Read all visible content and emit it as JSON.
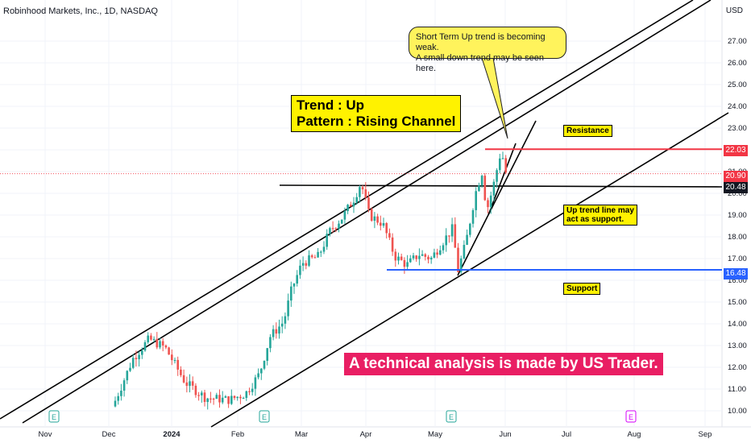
{
  "header": {
    "symbol_title": "Robinhood Markets, Inc., 1D, NASDAQ",
    "currency": "USD"
  },
  "annotations": {
    "trend_line1": "Trend : Up",
    "trend_line2": "Pattern : Rising Channel",
    "bubble_line1": "Short Term Up trend is becoming weak.",
    "bubble_line2": "A small down trend may be seen here.",
    "resistance": "Resistance",
    "uptrend_line1": "Up trend line may",
    "uptrend_line2": "act as support.",
    "support": "Support",
    "banner": "A  technical analysis is made by US Trader."
  },
  "price_labels": {
    "resistance_level": "22.03",
    "last_price": "20.90",
    "horizontal_level": "20.48",
    "support_level": "16.48"
  },
  "colors": {
    "up": "#26a69a",
    "down": "#ef5350",
    "resistance_line": "#f23645",
    "support_line": "#2962ff",
    "annotation_bg": "#fff200",
    "banner_bg": "#e91e63",
    "earnings_green": "#26a69a",
    "earnings_purple": "#d500f9"
  },
  "chart_data": {
    "type": "candlestick",
    "y_ticks": [
      "10.00",
      "11.00",
      "12.00",
      "13.00",
      "14.00",
      "15.00",
      "16.00",
      "17.00",
      "18.00",
      "19.00",
      "20.00",
      "21.00",
      "22.00",
      "23.00",
      "24.00",
      "25.00",
      "26.00",
      "27.00"
    ],
    "x_ticks": [
      "Nov",
      "Dec",
      "2024",
      "Feb",
      "Mar",
      "Apr",
      "May",
      "Jun",
      "Jul",
      "Aug",
      "Sep"
    ],
    "ylim": [
      9.8,
      28.6
    ],
    "levels": {
      "resistance": 22.03,
      "horizontal": 20.48,
      "support": 16.48,
      "last": 20.9
    },
    "earnings_markers": [
      {
        "label": "E",
        "date": "Nov"
      },
      {
        "label": "E",
        "date": "Feb"
      },
      {
        "label": "E",
        "date": "May"
      },
      {
        "label": "E",
        "date": "Aug"
      }
    ],
    "approximate_close_path": [
      {
        "date": "Dec",
        "value": 10.2
      },
      {
        "date": "Dec",
        "value": 12.5
      },
      {
        "date": "Dec",
        "value": 13.3
      },
      {
        "date": "2024",
        "value": 12.9
      },
      {
        "date": "2024",
        "value": 11.2
      },
      {
        "date": "Feb",
        "value": 10.6
      },
      {
        "date": "Feb",
        "value": 11.6
      },
      {
        "date": "Mar",
        "value": 13.2
      },
      {
        "date": "Mar",
        "value": 16.8
      },
      {
        "date": "Apr",
        "value": 19.5
      },
      {
        "date": "Apr",
        "value": 20.5
      },
      {
        "date": "Apr",
        "value": 18.5
      },
      {
        "date": "May",
        "value": 17.0
      },
      {
        "date": "May",
        "value": 16.4
      },
      {
        "date": "May",
        "value": 18.8
      },
      {
        "date": "Jun",
        "value": 20.5
      },
      {
        "date": "Jun",
        "value": 22.0
      },
      {
        "date": "Jun",
        "value": 20.9
      }
    ]
  }
}
